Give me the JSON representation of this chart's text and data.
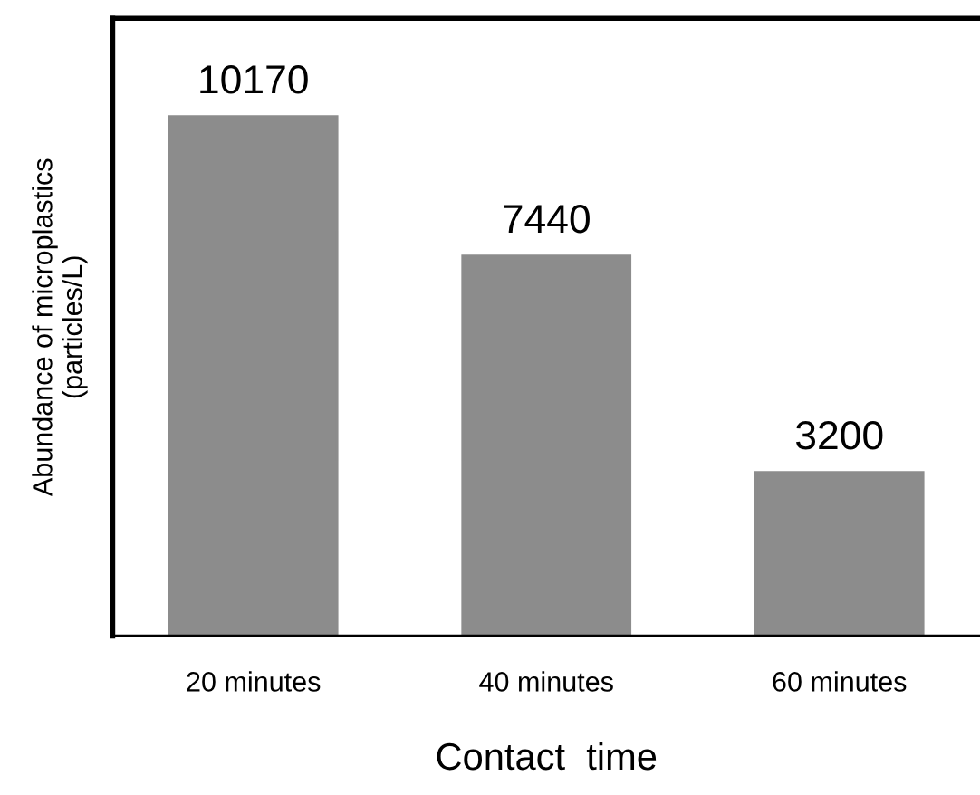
{
  "chart_data": {
    "type": "bar",
    "xlabel": "Contact  time",
    "ylabel": "Abundance of microplastics\n(particles/L)",
    "categories": [
      "20 minutes",
      "40 minutes",
      "60 minutes"
    ],
    "values": [
      10170,
      7440,
      3200
    ],
    "color": "#8c8c8c",
    "ylim": [
      0,
      12100
    ],
    "tick_labels": "x",
    "data_labels": true,
    "grid": false,
    "legend": false
  }
}
